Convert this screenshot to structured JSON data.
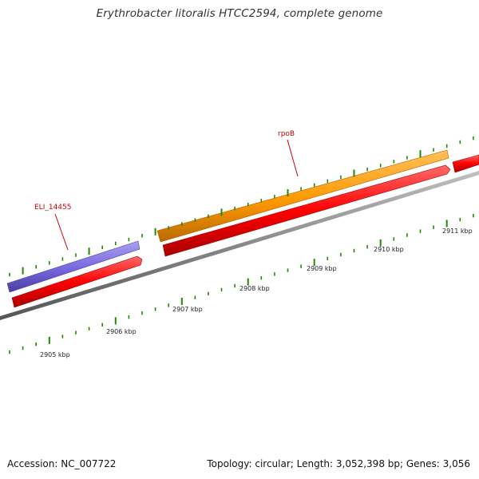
{
  "map": {
    "title": "Erythrobacter litoralis HTCC2594, complete genome",
    "accession_text": "Accession: NC_007722",
    "summary_text": "Topology: circular; Length: 3,052,398 bp; Genes: 3,056"
  },
  "colors": {
    "forward_cds": "#ff0000",
    "rpoB_gene": "#ff9900",
    "ELI_14455_gene": "#7766dd",
    "backbone": "#888888",
    "ticks": "#228800",
    "gene_label": "#cc0000"
  },
  "scale_labels": [
    "2905 kbp",
    "2906 kbp",
    "2907 kbp",
    "2908 kbp",
    "2909 kbp",
    "2910 kbp",
    "2911 kbp"
  ],
  "gene_labels": [
    "ELI_14455",
    "rpoB"
  ]
}
